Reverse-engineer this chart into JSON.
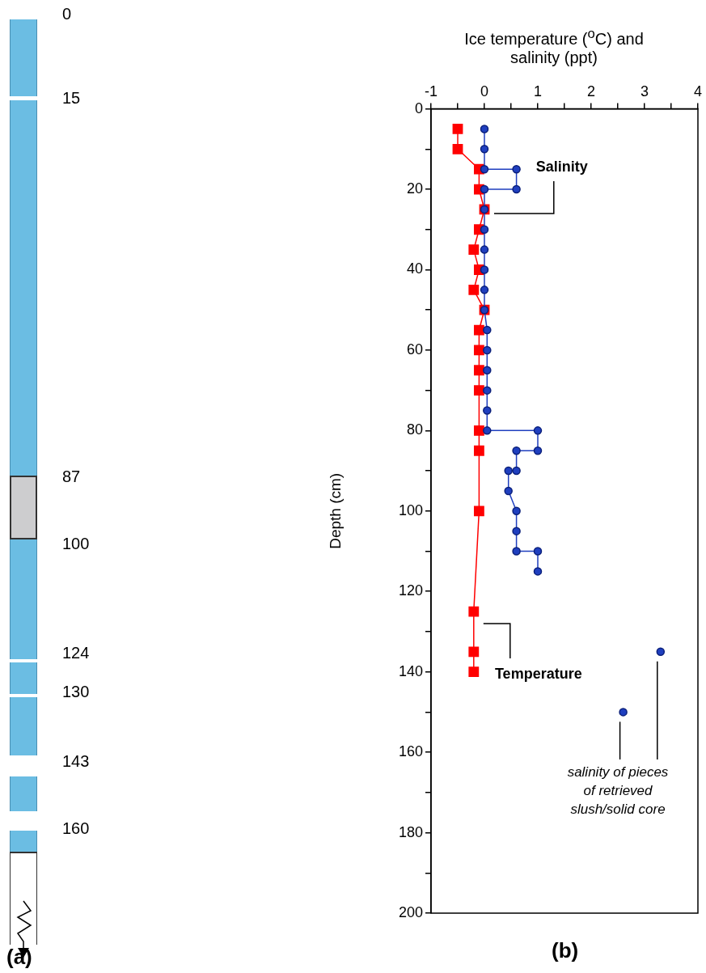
{
  "chart_data": [
    {
      "type": "other",
      "title": "(a)",
      "annotations": [
        "0",
        "15",
        "87",
        "100",
        "124",
        "130",
        "143",
        "160"
      ]
    },
    {
      "type": "line",
      "title": "(b)",
      "xlabel": "Ice temperature ($^{o}$C) and salinity (ppt)",
      "ylabel": "Depth (cm)",
      "xlim": [
        -1,
        4
      ],
      "xticks": [
        -1,
        {
          "value": -0.5,
          "label": null
        },
        0,
        {
          "value": 0.5,
          "label": null
        },
        1,
        {
          "value": 1.5,
          "label": null
        },
        2,
        {
          "value": 2.5,
          "label": null
        },
        3,
        {
          "value": 3.5,
          "label": null
        },
        4
      ],
      "ylim": [
        200,
        0
      ],
      "yticks": [
        0,
        {
          "value": 10,
          "label": null
        },
        20,
        {
          "value": 30,
          "label": null
        },
        40,
        {
          "value": 50,
          "label": null
        },
        60,
        {
          "value": 70,
          "label": null
        },
        80,
        {
          "value": 90,
          "label": null
        },
        100,
        {
          "value": 110,
          "label": null
        },
        120,
        {
          "value": 130,
          "label": null
        },
        140,
        {
          "value": 150,
          "label": null
        },
        160,
        {
          "value": 170,
          "label": null
        },
        180,
        {
          "value": 190,
          "label": null
        },
        200
      ],
      "grid": false,
      "legend": false,
      "line_style": "solid",
      "series": [
        {
          "name": "Temperature",
          "color": "#ff0000",
          "marker": "square",
          "x": [
            -0.5,
            -0.5,
            -0.1,
            -0.1,
            0,
            -0.1,
            -0.2,
            -0.1,
            -0.2,
            0,
            -0.1,
            -0.1,
            -0.1,
            -0.1,
            -0.1,
            -0.1,
            -0.1,
            -0.2,
            -0.2,
            -0.2
          ],
          "values": [
            5,
            10,
            15,
            20,
            25,
            30,
            35,
            40,
            45,
            50,
            55,
            60,
            65,
            70,
            80,
            85,
            100,
            125,
            135,
            140
          ]
        },
        {
          "name": "Salinity",
          "color": "#1f3fbf",
          "marker": "circle",
          "x": [
            0,
            0,
            0,
            0.6,
            0.6,
            0,
            0,
            0,
            0,
            0,
            0,
            0,
            0.05,
            0.05,
            0.05,
            0.05,
            0.05,
            0.05,
            1,
            1,
            0.6,
            0.6,
            0.45,
            0.45,
            0.6,
            0.6,
            0.6,
            1,
            1
          ],
          "values": [
            5,
            10,
            15,
            15,
            20,
            20,
            25,
            30,
            35,
            40,
            45,
            50,
            55,
            60,
            65,
            70,
            75,
            80,
            80,
            85,
            85,
            90,
            90,
            95,
            100,
            105,
            110,
            110,
            115
          ]
        },
        {
          "type": "scatter",
          "color": "#1f3fbf",
          "marker": "circle",
          "x": [
            3.3,
            2.6
          ],
          "values": [
            135,
            150
          ]
        }
      ],
      "annotations": [
        "salinity of pieces of retrieved slush/solid core"
      ]
    }
  ]
}
